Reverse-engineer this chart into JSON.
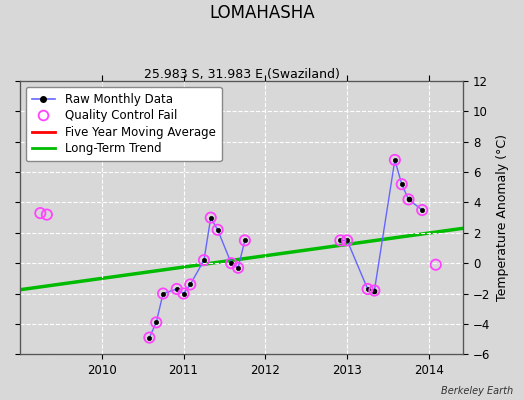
{
  "title": "LOMAHASHA",
  "subtitle": "25.983 S, 31.983 E (Swaziland)",
  "ylabel": "Temperature Anomaly (°C)",
  "credit": "Berkeley Earth",
  "ylim": [
    -6,
    12
  ],
  "xlim": [
    2009.0,
    2014.42
  ],
  "yticks": [
    -6,
    -4,
    -2,
    0,
    2,
    4,
    6,
    8,
    10,
    12
  ],
  "xticks": [
    2010,
    2011,
    2012,
    2013,
    2014
  ],
  "background_color": "#d8d8d8",
  "plot_bg_color": "#d8d8d8",
  "raw_segments": [
    {
      "x": [
        2010.583,
        2010.667,
        2010.75,
        2010.917,
        2011.0,
        2011.083,
        2011.25,
        2011.333,
        2011.417,
        2011.583,
        2011.667,
        2011.75
      ],
      "y": [
        -4.9,
        -3.9,
        -2.0,
        -1.7,
        -2.0,
        -1.4,
        0.2,
        3.0,
        2.2,
        0.0,
        -0.3,
        1.5
      ]
    },
    {
      "x": [
        2012.917,
        2013.0,
        2013.25,
        2013.333,
        2013.583,
        2013.667,
        2013.75,
        2013.917
      ],
      "y": [
        1.5,
        1.5,
        -1.7,
        -1.8,
        6.8,
        5.2,
        4.2,
        3.5
      ]
    }
  ],
  "qc_fail_x": [
    2009.25,
    2009.33,
    2010.583,
    2010.667,
    2010.75,
    2010.917,
    2011.0,
    2011.083,
    2011.25,
    2011.333,
    2011.417,
    2011.583,
    2011.667,
    2011.75,
    2012.917,
    2013.0,
    2013.25,
    2013.333,
    2013.583,
    2013.667,
    2013.75,
    2013.917,
    2014.083
  ],
  "qc_fail_y": [
    3.3,
    3.2,
    -4.9,
    -3.9,
    -2.0,
    -1.7,
    -2.0,
    -1.4,
    0.2,
    3.0,
    2.2,
    0.0,
    -0.3,
    1.5,
    1.5,
    1.5,
    -1.7,
    -1.8,
    6.8,
    5.2,
    4.2,
    3.5,
    -0.1
  ],
  "trend_x": [
    2009.0,
    2014.42
  ],
  "trend_y": [
    -1.75,
    2.3
  ],
  "raw_line_color": "#6666ff",
  "raw_marker_color": "#000000",
  "qc_color": "#ff44ff",
  "trend_color": "#00bb00",
  "moving_avg_color": "#ff0000",
  "grid_color": "#ffffff",
  "title_fontsize": 12,
  "subtitle_fontsize": 9,
  "label_fontsize": 9,
  "tick_fontsize": 8.5,
  "legend_fontsize": 8.5
}
